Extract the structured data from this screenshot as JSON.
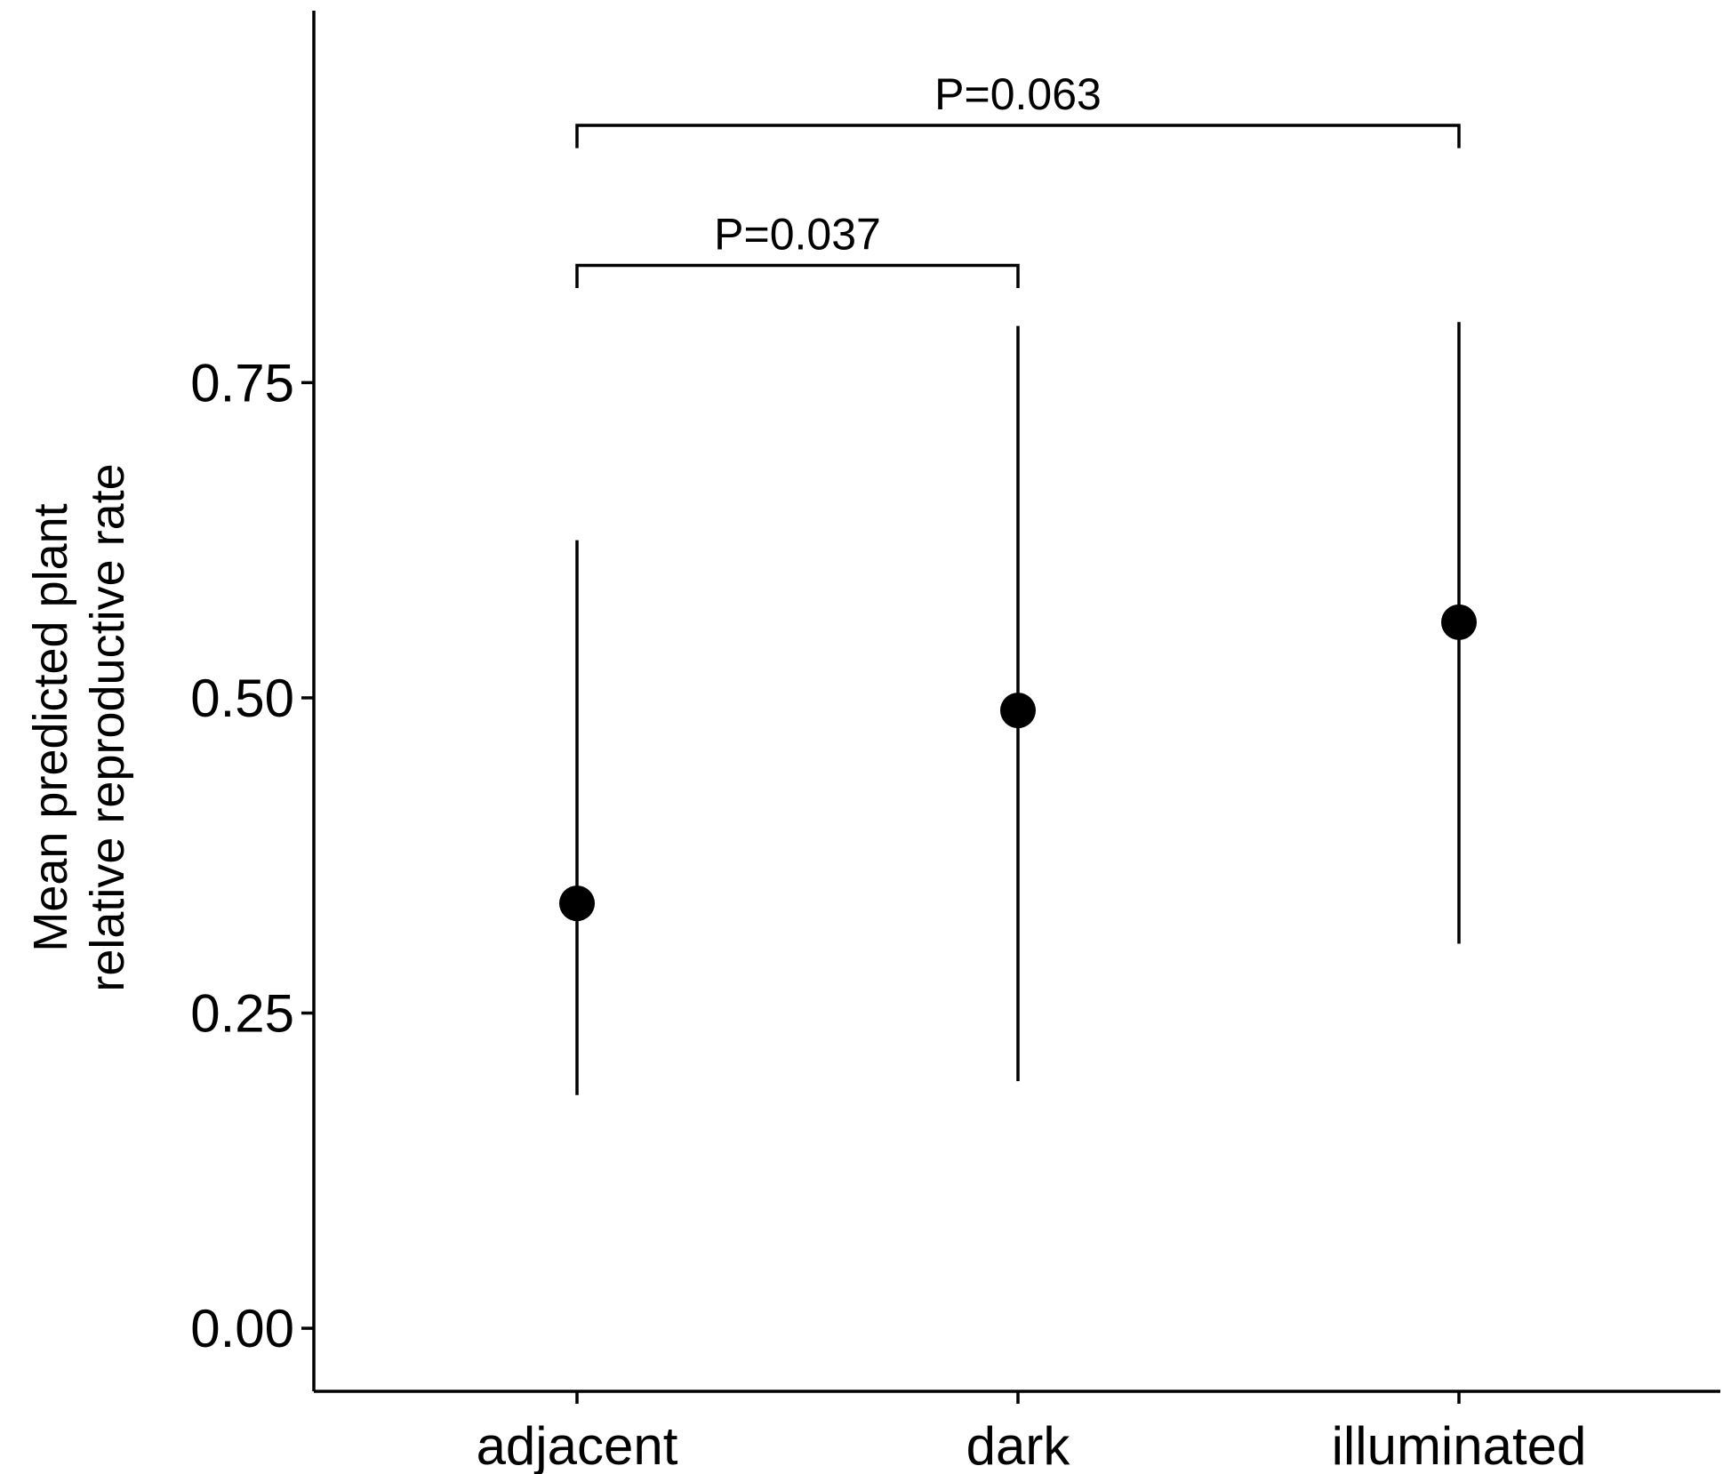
{
  "chart_data": {
    "type": "scatter",
    "title": "",
    "xlabel": "",
    "ylabel": [
      "Mean predicted plant",
      "relative reproductive rate"
    ],
    "categories": [
      "adjacent",
      "dark",
      "illuminated"
    ],
    "series": [
      {
        "values": [
          0.337,
          0.49,
          0.56
        ],
        "lower": [
          0.185,
          0.196,
          0.305
        ],
        "upper": [
          0.625,
          0.795,
          0.798
        ]
      }
    ],
    "ylim": [
      -0.05,
      1.045
    ],
    "yticks": [
      0.0,
      0.25,
      0.5,
      0.75
    ],
    "ytick_labels": [
      "0.00",
      "0.25",
      "0.50",
      "0.75"
    ],
    "grid": false,
    "annotations": [
      {
        "from": "adjacent",
        "to": "dark",
        "label": "P=0.037",
        "y": 0.843,
        "tick_bottom": 0.825
      },
      {
        "from": "adjacent",
        "to": "illuminated",
        "label": "P=0.063",
        "y": 0.954,
        "tick_bottom": 0.936
      }
    ]
  }
}
